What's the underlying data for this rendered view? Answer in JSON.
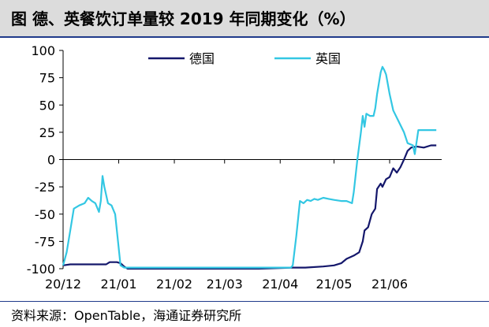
{
  "header": {
    "title": "图 德、英餐饮订单量较 2019 年同期变化（%）"
  },
  "footer": {
    "source": "资料来源：OpenTable，海通证券研究所"
  },
  "chart_data": {
    "type": "line",
    "title": "",
    "xlabel": "",
    "ylabel": "",
    "ylim": [
      -100,
      100
    ],
    "yticks": [
      100,
      75,
      50,
      25,
      0,
      -25,
      -50,
      -75,
      -100
    ],
    "xlim": [
      "2020-12-01",
      "2021-06-30"
    ],
    "xticks": [
      {
        "date": "2020-12-01",
        "label": "20/12"
      },
      {
        "date": "2021-01-01",
        "label": "21/01"
      },
      {
        "date": "2021-02-01",
        "label": "21/02"
      },
      {
        "date": "2021-03-01",
        "label": "21/03"
      },
      {
        "date": "2021-04-01",
        "label": "21/04"
      },
      {
        "date": "2021-05-01",
        "label": "21/05"
      },
      {
        "date": "2021-06-01",
        "label": "21/06"
      }
    ],
    "legend_position": "top-center",
    "series": [
      {
        "name": "德国",
        "color": "#14176b",
        "points": [
          [
            "2020-12-01",
            -97
          ],
          [
            "2020-12-05",
            -96
          ],
          [
            "2020-12-15",
            -96
          ],
          [
            "2020-12-25",
            -96
          ],
          [
            "2020-12-27",
            -94
          ],
          [
            "2020-12-31",
            -94
          ],
          [
            "2021-01-02",
            -95
          ],
          [
            "2021-01-04",
            -98
          ],
          [
            "2021-01-06",
            -100
          ],
          [
            "2021-01-20",
            -100
          ],
          [
            "2021-02-10",
            -100
          ],
          [
            "2021-03-01",
            -100
          ],
          [
            "2021-03-20",
            -100
          ],
          [
            "2021-04-08",
            -99
          ],
          [
            "2021-04-15",
            -99
          ],
          [
            "2021-04-25",
            -98
          ],
          [
            "2021-05-01",
            -97
          ],
          [
            "2021-05-05",
            -95
          ],
          [
            "2021-05-08",
            -91
          ],
          [
            "2021-05-12",
            -88
          ],
          [
            "2021-05-15",
            -85
          ],
          [
            "2021-05-17",
            -75
          ],
          [
            "2021-05-18",
            -65
          ],
          [
            "2021-05-20",
            -62
          ],
          [
            "2021-05-22",
            -50
          ],
          [
            "2021-05-24",
            -45
          ],
          [
            "2021-05-25",
            -27
          ],
          [
            "2021-05-27",
            -22
          ],
          [
            "2021-05-28",
            -25
          ],
          [
            "2021-05-30",
            -18
          ],
          [
            "2021-06-01",
            -16
          ],
          [
            "2021-06-03",
            -8
          ],
          [
            "2021-06-05",
            -12
          ],
          [
            "2021-06-07",
            -7
          ],
          [
            "2021-06-09",
            0
          ],
          [
            "2021-06-11",
            8
          ],
          [
            "2021-06-13",
            11
          ],
          [
            "2021-06-16",
            12
          ],
          [
            "2021-06-20",
            11
          ],
          [
            "2021-06-24",
            13
          ],
          [
            "2021-06-27",
            13
          ]
        ]
      },
      {
        "name": "英国",
        "color": "#33c7e3",
        "points": [
          [
            "2020-12-01",
            -97
          ],
          [
            "2020-12-03",
            -85
          ],
          [
            "2020-12-05",
            -65
          ],
          [
            "2020-12-07",
            -45
          ],
          [
            "2020-12-10",
            -42
          ],
          [
            "2020-12-13",
            -40
          ],
          [
            "2020-12-15",
            -35
          ],
          [
            "2020-12-17",
            -38
          ],
          [
            "2020-12-19",
            -40
          ],
          [
            "2020-12-21",
            -48
          ],
          [
            "2020-12-22",
            -38
          ],
          [
            "2020-12-23",
            -15
          ],
          [
            "2020-12-24",
            -25
          ],
          [
            "2020-12-26",
            -40
          ],
          [
            "2020-12-28",
            -42
          ],
          [
            "2020-12-30",
            -50
          ],
          [
            "2021-01-02",
            -97
          ],
          [
            "2021-01-04",
            -99
          ],
          [
            "2021-01-20",
            -99
          ],
          [
            "2021-02-10",
            -99
          ],
          [
            "2021-03-01",
            -99
          ],
          [
            "2021-03-20",
            -99
          ],
          [
            "2021-04-07",
            -99
          ],
          [
            "2021-04-08",
            -97
          ],
          [
            "2021-04-10",
            -70
          ],
          [
            "2021-04-12",
            -38
          ],
          [
            "2021-04-14",
            -40
          ],
          [
            "2021-04-16",
            -37
          ],
          [
            "2021-04-18",
            -38
          ],
          [
            "2021-04-20",
            -36
          ],
          [
            "2021-04-22",
            -37
          ],
          [
            "2021-04-25",
            -35
          ],
          [
            "2021-04-28",
            -36
          ],
          [
            "2021-05-01",
            -37
          ],
          [
            "2021-05-05",
            -38
          ],
          [
            "2021-05-08",
            -38
          ],
          [
            "2021-05-11",
            -40
          ],
          [
            "2021-05-12",
            -30
          ],
          [
            "2021-05-14",
            0
          ],
          [
            "2021-05-16",
            25
          ],
          [
            "2021-05-17",
            40
          ],
          [
            "2021-05-18",
            30
          ],
          [
            "2021-05-19",
            42
          ],
          [
            "2021-05-21",
            40
          ],
          [
            "2021-05-23",
            40
          ],
          [
            "2021-05-24",
            47
          ],
          [
            "2021-05-25",
            60
          ],
          [
            "2021-05-26",
            70
          ],
          [
            "2021-05-27",
            80
          ],
          [
            "2021-05-28",
            85
          ],
          [
            "2021-05-29",
            82
          ],
          [
            "2021-05-30",
            78
          ],
          [
            "2021-06-01",
            60
          ],
          [
            "2021-06-03",
            45
          ],
          [
            "2021-06-06",
            35
          ],
          [
            "2021-06-09",
            25
          ],
          [
            "2021-06-11",
            15
          ],
          [
            "2021-06-14",
            13
          ],
          [
            "2021-06-15",
            5
          ],
          [
            "2021-06-17",
            27
          ],
          [
            "2021-06-20",
            27
          ],
          [
            "2021-06-27",
            27
          ]
        ]
      }
    ]
  }
}
